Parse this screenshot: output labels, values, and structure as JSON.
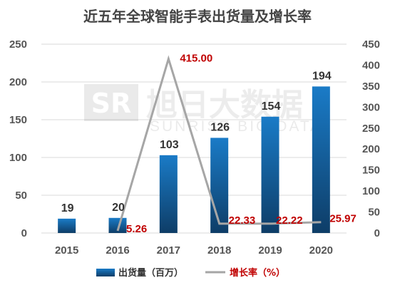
{
  "chart_data": {
    "type": "bar",
    "title": "近五年全球智能手表出货量及增长率",
    "categories": [
      "2015",
      "2016",
      "2017",
      "2018",
      "2019",
      "2020"
    ],
    "series": [
      {
        "name": "出货量（百万）",
        "type": "bar",
        "axis": "left",
        "values": [
          19,
          20,
          103,
          126,
          154,
          194
        ],
        "labels": [
          "19",
          "20",
          "103",
          "126",
          "154",
          "194"
        ]
      },
      {
        "name": "增长率（%）",
        "type": "line",
        "axis": "right",
        "values": [
          null,
          5.26,
          415.0,
          22.33,
          22.22,
          25.97
        ],
        "labels": [
          "",
          "5.26",
          "415.00",
          "22.33",
          "22.22",
          "25.97"
        ]
      }
    ],
    "y_left": {
      "min": 0,
      "max": 250,
      "ticks": [
        "0",
        "50",
        "100",
        "150",
        "200",
        "250"
      ]
    },
    "y_right": {
      "min": 0,
      "max": 450,
      "ticks": [
        "0",
        "50",
        "100",
        "150",
        "200",
        "250",
        "300",
        "350",
        "400",
        "450"
      ]
    },
    "grid": true,
    "legend_position": "bottom",
    "colors": {
      "bar": "#1a7bc7",
      "bar_dark": "#0e3d67",
      "line": "#a6a6a6",
      "rate_label": "#c00000",
      "grid": "#d9d9d9",
      "axis_text": "#555555"
    }
  },
  "watermark": {
    "text_cn": "旭日大数据",
    "text_en": "SUNRISE BIG DATA",
    "logo_mark": "SR"
  }
}
